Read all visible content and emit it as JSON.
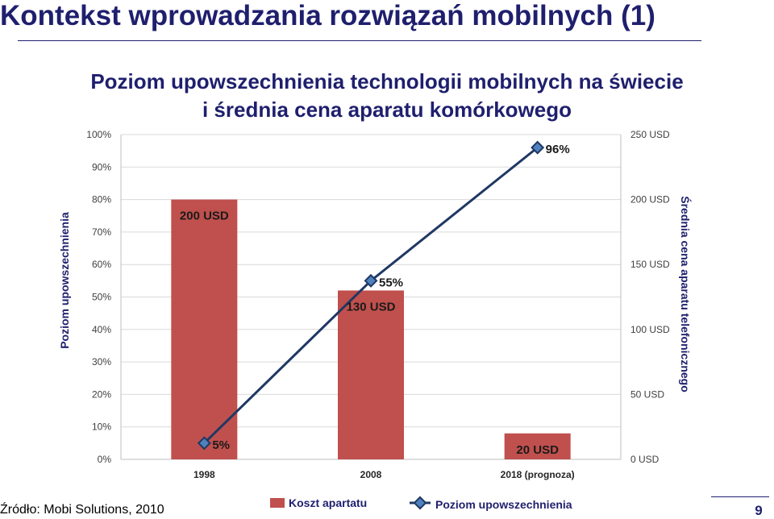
{
  "slide": {
    "title": "Kontekst wprowadzania rozwiązań mobilnych (1)",
    "source": "Źródło: Mobi Solutions, 2010",
    "page_number": "9"
  },
  "chart_data": {
    "type": "bar",
    "title": [
      "Poziom upowszechnienia technologii mobilnych na świecie",
      "i średnia cena aparatu komórkowego"
    ],
    "categories": [
      "1998",
      "2008",
      "2018 (prognoza)"
    ],
    "series": [
      {
        "name": "Koszt apartatu",
        "type": "bar",
        "axis": "right",
        "values": [
          200,
          130,
          20
        ],
        "labels": [
          "200 USD",
          "130 USD",
          "20 USD"
        ],
        "color": "#c0504d"
      },
      {
        "name": "Poziom upowszechnienia",
        "type": "line",
        "axis": "left",
        "values": [
          5,
          55,
          96
        ],
        "labels": [
          "5%",
          "55%",
          "96%"
        ],
        "color": "#1f3864"
      }
    ],
    "left_axis": {
      "label": "Poziom upowszechnienia",
      "range": [
        0,
        100
      ],
      "ticks": [
        "0%",
        "10%",
        "20%",
        "30%",
        "40%",
        "50%",
        "60%",
        "70%",
        "80%",
        "90%",
        "100%"
      ]
    },
    "right_axis": {
      "label": "Średnia cena aparatu telefonicznego",
      "range": [
        0,
        250
      ],
      "ticks": [
        "0 USD",
        "50 USD",
        "100 USD",
        "150 USD",
        "200 USD",
        "250 USD"
      ]
    },
    "grid": true,
    "legend_position": "bottom"
  }
}
